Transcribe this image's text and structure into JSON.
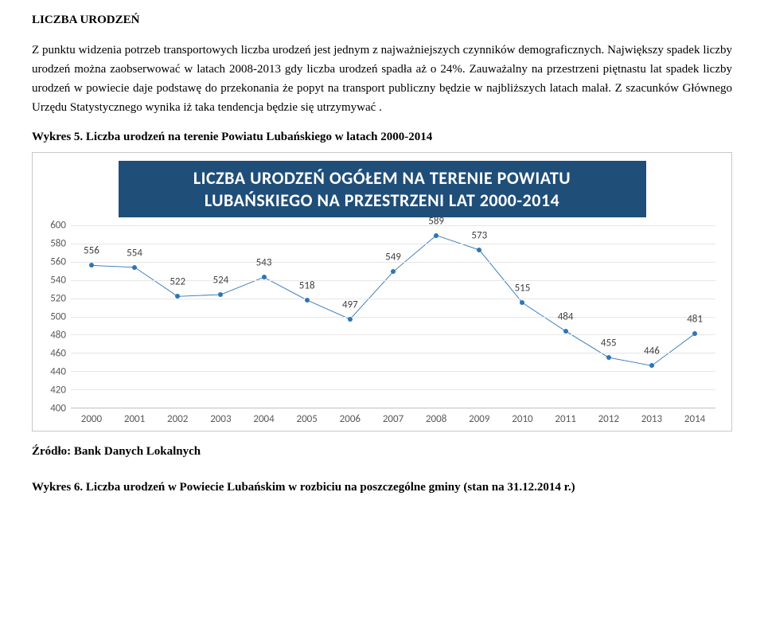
{
  "heading": "LICZBA URODZEŃ",
  "para1": "Z punktu widzenia potrzeb transportowych liczba urodzeń jest jednym z najważniejszych czynników demograficznych. Największy spadek liczby urodzeń można zaobserwować w latach 2008-2013 gdy liczba urodzeń spadła aż o 24%. Zauważalny na przestrzeni piętnastu lat spadek liczby urodzeń w powiecie daje podstawę do przekonania że popyt na transport publiczny będzie w najbliższych latach malał. Z szacunków Głównego Urzędu Statystycznego wynika iż taka tendencja będzie się utrzymywać .",
  "wykres5": "Wykres 5. Liczba urodzeń na terenie Powiatu Lubańskiego w latach 2000-2014",
  "chart": {
    "title_line1": "LICZBA URODZEŃ OGÓŁEM NA TERENIE POWIATU",
    "title_line2": "LUBAŃSKIEGO NA PRZESTRZENI LAT 2000-2014",
    "ymin": 400,
    "ymax": 600,
    "ytick_step": 20,
    "yticks": [
      400,
      420,
      440,
      460,
      480,
      500,
      520,
      540,
      560,
      580,
      600
    ],
    "categories": [
      "2000",
      "2001",
      "2002",
      "2003",
      "2004",
      "2005",
      "2006",
      "2007",
      "2008",
      "2009",
      "2010",
      "2011",
      "2012",
      "2013",
      "2014"
    ],
    "values": [
      556,
      554,
      522,
      524,
      543,
      518,
      497,
      549,
      589,
      573,
      515,
      484,
      455,
      446,
      481
    ],
    "line_color": "#2e75b6",
    "marker_color": "#2e75b6",
    "grid_color": "#e6e6e6",
    "axis_color": "#bfbfbf",
    "label_color": "#404040",
    "tick_color": "#595959",
    "title_bg": "#1f4e79",
    "title_fg": "#ffffff",
    "label_fontsize": 13,
    "title_fontsize": 22
  },
  "source": "Źródło: Bank Danych Lokalnych",
  "wykres6": "Wykres 6. Liczba urodzeń w Powiecie Lubańskim w rozbiciu na poszczególne gminy (stan na 31.12.2014 r.)"
}
